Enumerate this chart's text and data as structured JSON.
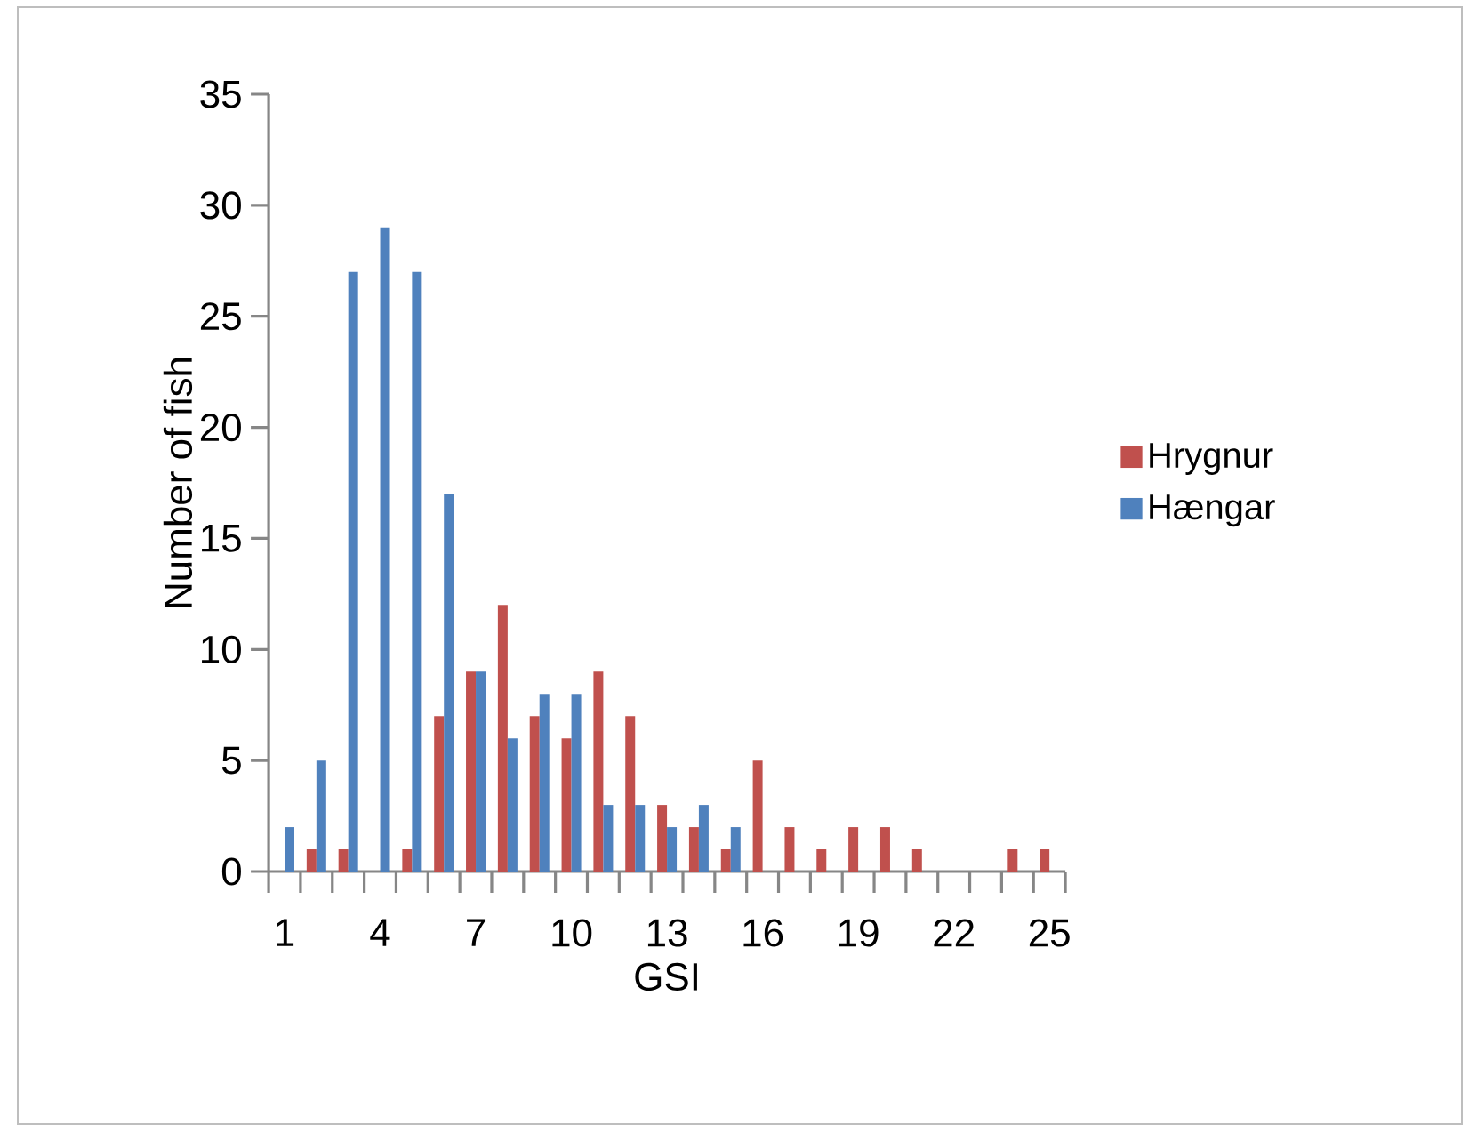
{
  "chart_data": {
    "type": "bar",
    "xlabel": "GSI",
    "ylabel": "Number of fish",
    "categories": [
      "1",
      null,
      null,
      "4",
      null,
      null,
      "7",
      null,
      null,
      "10",
      null,
      null,
      "13",
      null,
      null,
      "16",
      null,
      null,
      "19",
      null,
      null,
      "22",
      null,
      null,
      "25"
    ],
    "series": [
      {
        "name": "Hrygnur",
        "color": "#c0504d",
        "values": [
          0,
          1,
          1,
          0,
          1,
          7,
          9,
          12,
          7,
          6,
          9,
          7,
          3,
          2,
          1,
          5,
          2,
          1,
          2,
          2,
          1,
          0,
          0,
          1,
          1
        ]
      },
      {
        "name": "Hængar",
        "color": "#4f81bd",
        "values": [
          2,
          5,
          27,
          29,
          27,
          17,
          9,
          6,
          8,
          8,
          3,
          3,
          2,
          3,
          2,
          0,
          0,
          0,
          0,
          0,
          0,
          0,
          0,
          0,
          0
        ]
      }
    ],
    "ylim": [
      0,
      35
    ],
    "yticks": [
      0,
      5,
      10,
      15,
      20,
      25,
      30,
      35
    ],
    "legend": "right"
  }
}
